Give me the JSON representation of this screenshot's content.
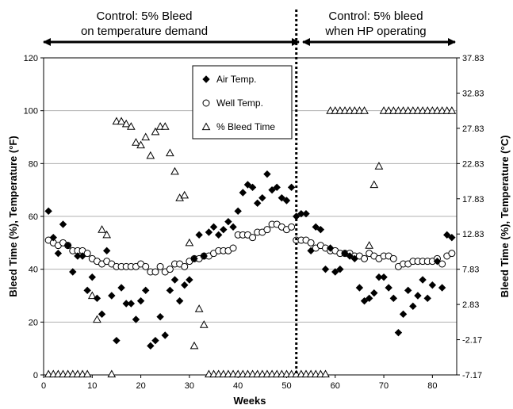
{
  "chart_data": {
    "type": "scatter",
    "annotations": {
      "left_line1": "Control: 5% Bleed",
      "left_line2": "on temperature demand",
      "right_line1": "Control: 5% bleed",
      "right_line2": "when HP operating"
    },
    "divider_x": 52,
    "xlabel": "Weeks",
    "ylabel_left": "Bleed Time (%), Temperature (°F)",
    "ylabel_right": "Bleed Time (%), Temperature (°C)",
    "xlim": [
      0,
      85
    ],
    "ylim": [
      0,
      120
    ],
    "x_ticks": [
      "0",
      "10",
      "20",
      "30",
      "40",
      "50",
      "60",
      "70",
      "80"
    ],
    "x_tick_values": [
      0,
      10,
      20,
      30,
      40,
      50,
      60,
      70,
      80
    ],
    "y_ticks_left": [
      "0",
      "20",
      "40",
      "60",
      "80",
      "100",
      "120"
    ],
    "y_tick_values_left": [
      0,
      20,
      40,
      60,
      80,
      100,
      120
    ],
    "y_ticks_right": [
      "-7.17",
      "-2.17",
      "2.83",
      "7.83",
      "12.83",
      "17.83",
      "22.83",
      "27.83",
      "32.83",
      "37.83"
    ],
    "y_tick_values_right": [
      0,
      9,
      18,
      27,
      36,
      45,
      54,
      63,
      72,
      81
    ],
    "grid": true,
    "legend": {
      "placement": "top-center",
      "entries": [
        {
          "name": "Air Temp.",
          "marker": "diamond"
        },
        {
          "name": "Well Temp.",
          "marker": "circle"
        },
        {
          "name": "% Bleed Time",
          "marker": "triangle"
        }
      ]
    },
    "series": [
      {
        "name": "Air Temp.",
        "marker": "diamond",
        "color": "#000000",
        "x": [
          1,
          2,
          3,
          4,
          5,
          6,
          7,
          8,
          9,
          10,
          11,
          12,
          13,
          14,
          15,
          16,
          17,
          18,
          19,
          20,
          21,
          22,
          23,
          24,
          25,
          26,
          27,
          28,
          29,
          30,
          31,
          32,
          33,
          34,
          35,
          36,
          37,
          38,
          39,
          40,
          41,
          42,
          43,
          44,
          45,
          46,
          47,
          48,
          49,
          50,
          51,
          52,
          53,
          54,
          55,
          56,
          57,
          58,
          59,
          60,
          61,
          62,
          63,
          64,
          65,
          66,
          67,
          68,
          69,
          70,
          71,
          72,
          73,
          74,
          75,
          76,
          77,
          78,
          79,
          80,
          81,
          82,
          83,
          84
        ],
        "y": [
          62,
          52,
          46,
          57,
          49,
          39,
          45,
          45,
          32,
          37,
          29,
          23,
          47,
          30,
          13,
          33,
          27,
          27,
          21,
          28,
          32,
          11,
          13,
          22,
          15,
          32,
          36,
          28,
          34,
          36,
          44,
          53,
          45,
          54,
          56,
          53,
          55,
          58,
          56,
          62,
          69,
          72,
          71,
          65,
          67,
          76,
          70,
          71,
          67,
          66,
          71,
          60,
          61,
          61,
          47,
          56,
          55,
          40,
          48,
          39,
          40,
          46,
          45,
          44,
          33,
          28,
          29,
          31,
          37,
          37,
          33,
          29,
          16,
          23,
          32,
          26,
          30,
          36,
          29,
          34,
          43,
          33,
          53,
          52
        ]
      },
      {
        "name": "Well Temp.",
        "marker": "circle",
        "color": "#ffffff",
        "x": [
          1,
          2,
          3,
          4,
          5,
          6,
          7,
          8,
          9,
          10,
          11,
          12,
          13,
          14,
          15,
          16,
          17,
          18,
          19,
          20,
          21,
          22,
          23,
          24,
          25,
          26,
          27,
          28,
          29,
          30,
          31,
          32,
          33,
          34,
          35,
          36,
          37,
          38,
          39,
          40,
          41,
          42,
          43,
          44,
          45,
          46,
          47,
          48,
          49,
          50,
          51,
          52,
          53,
          54,
          55,
          56,
          57,
          58,
          59,
          60,
          61,
          62,
          63,
          64,
          65,
          66,
          67,
          68,
          69,
          70,
          71,
          72,
          73,
          74,
          75,
          76,
          77,
          78,
          79,
          80,
          81,
          82,
          83,
          84
        ],
        "y": [
          51,
          50,
          49,
          50,
          49,
          47,
          47,
          47,
          46,
          44,
          43,
          42,
          43,
          42,
          41,
          41,
          41,
          41,
          41,
          42,
          41,
          39,
          39,
          41,
          39,
          40,
          42,
          42,
          41,
          43,
          44,
          44,
          45,
          45,
          46,
          47,
          47,
          47,
          48,
          53,
          53,
          53,
          52,
          54,
          54,
          55,
          57,
          57,
          56,
          55,
          56,
          51,
          51,
          51,
          50,
          48,
          49,
          48,
          47,
          47,
          46,
          46,
          46,
          45,
          45,
          44,
          46,
          45,
          44,
          45,
          45,
          44,
          41,
          42,
          42,
          43,
          43,
          43,
          43,
          43,
          44,
          42,
          45,
          46
        ]
      },
      {
        "name": "% Bleed Time",
        "marker": "triangle",
        "color": "#ffffff",
        "x": [
          1,
          2,
          3,
          4,
          5,
          6,
          7,
          8,
          9,
          10,
          11,
          12,
          13,
          14,
          15,
          16,
          17,
          18,
          19,
          20,
          21,
          22,
          23,
          24,
          25,
          26,
          27,
          28,
          29,
          30,
          31,
          32,
          33,
          34,
          35,
          36,
          37,
          38,
          39,
          40,
          41,
          42,
          43,
          44,
          45,
          46,
          47,
          48,
          49,
          50,
          51,
          52,
          53,
          54,
          55,
          56,
          57,
          58,
          59,
          60,
          61,
          62,
          63,
          64,
          65,
          66,
          67,
          68,
          69,
          70,
          71,
          72,
          73,
          74,
          75,
          76,
          77,
          78,
          79,
          80,
          81,
          82,
          83,
          84
        ],
        "y": [
          0,
          0,
          0,
          0,
          0,
          0,
          0,
          0,
          0,
          30,
          21,
          55,
          53,
          0,
          96,
          96,
          95,
          94,
          88,
          87,
          90,
          83,
          92,
          94,
          94,
          84,
          77,
          67,
          68,
          50,
          11,
          25,
          19,
          0,
          0,
          0,
          0,
          0,
          0,
          0,
          0,
          0,
          0,
          0,
          0,
          0,
          0,
          0,
          0,
          0,
          0,
          0,
          0,
          0,
          0,
          0,
          0,
          0,
          100,
          100,
          100,
          100,
          100,
          100,
          100,
          100,
          49,
          72,
          79,
          100,
          100,
          100,
          100,
          100,
          100,
          100,
          100,
          100,
          100,
          100,
          100,
          100,
          100,
          100
        ]
      }
    ]
  }
}
